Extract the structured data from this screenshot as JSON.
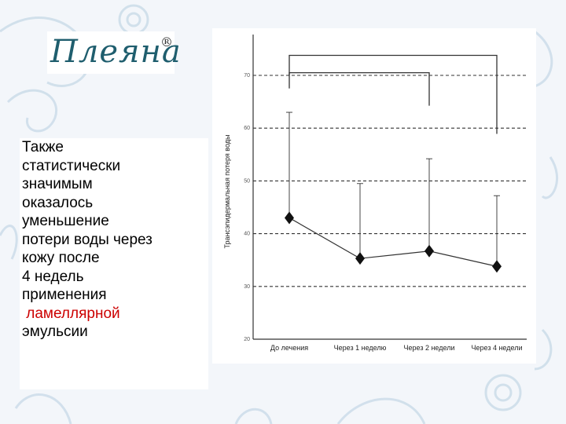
{
  "logo": {
    "text": "Плеяна",
    "registered": "®"
  },
  "text_block": {
    "lines": [
      "Также",
      "статистически",
      "значимым",
      "оказалось",
      "уменьшение",
      "потери воды через",
      "кожу после",
      "4 недель",
      "применения"
    ],
    "highlight": "ламеллярной",
    "last_line": "эмульсии",
    "highlight_color": "#cc0000"
  },
  "chart_data": {
    "type": "line",
    "categories": [
      "До лечения",
      "Через 1 неделю",
      "Через 2 недели",
      "Через 4 недели"
    ],
    "series": [
      {
        "values": [
          43,
          35.3,
          36.7,
          33.8
        ],
        "error_upper": [
          63,
          49.5,
          54.2,
          47.2
        ]
      }
    ],
    "ylabel": "Трансэпидермальная потеря воды",
    "ylim": [
      20,
      70
    ],
    "yticks": [
      20,
      30,
      40,
      50,
      60,
      70
    ],
    "grid": true,
    "significance_brackets": [
      {
        "from": "До лечения",
        "to": "Через 4 недели",
        "level": 73.8
      },
      {
        "from": "До лечения",
        "to": "Через 2 недели",
        "level": 70.5
      }
    ]
  }
}
